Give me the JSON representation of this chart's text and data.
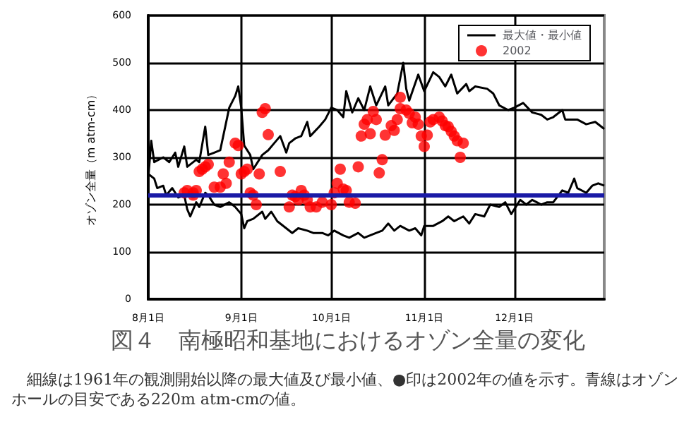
{
  "chart_data": {
    "type": "line",
    "title": "図４　南極昭和基地におけるオゾン全量の変化",
    "ylabel": "オゾン全量（m atm-cm）",
    "annotations": [
      "細線は1961年の観測開始以降の最大値及び最小値、●印は2002年の値を示す。青線はオゾンホールの目安である220m atm-cmの値。"
    ],
    "xlim": [
      "--08-01",
      "--12-31"
    ],
    "xticks": [
      {
        "value": "--08-01",
        "label": "8月1日"
      },
      {
        "value": "--09-01",
        "label": "9月1日"
      },
      {
        "value": "--10-01",
        "label": "10月1日"
      },
      {
        "value": "--11-01",
        "label": "11月1日"
      },
      {
        "value": "--12-01",
        "label": "12月1日"
      }
    ],
    "ylim": [
      0,
      600
    ],
    "yticks": [
      0,
      100,
      200,
      300,
      400,
      500,
      600
    ],
    "grid": true,
    "legend": "top right",
    "marker": "none",
    "line_style": "solid",
    "ref_lines": [
      {
        "axis": "y",
        "value": 220,
        "color": "#1a1aa6"
      }
    ],
    "series": [
      {
        "name": "最大値・最小値",
        "color": "#000000",
        "x": [
          "--08-01",
          "--08-02",
          "--08-03",
          "--08-06",
          "--08-08",
          "--08-10",
          "--08-11",
          "--08-13",
          "--08-14",
          "--08-17",
          "--08-18",
          "--08-20",
          "--08-21",
          "--08-23",
          "--08-25",
          "--08-26",
          "--08-28",
          "--08-30",
          "--08-31",
          "--09-01",
          "--09-02",
          "--09-04",
          "--09-05",
          "--09-08",
          "--09-10",
          "--09-12",
          "--09-14",
          "--09-16",
          "--09-17",
          "--09-19",
          "--09-21",
          "--09-23",
          "--09-24",
          "--09-27",
          "--09-29",
          "--10-01",
          "--10-03",
          "--10-05",
          "--10-06",
          "--10-08",
          "--10-10",
          "--10-12",
          "--10-14",
          "--10-16",
          "--10-19",
          "--10-20",
          "--10-23",
          "--10-25",
          "--10-26",
          "--10-27",
          "--10-30",
          "--11-01",
          "--11-04",
          "--11-06",
          "--11-08",
          "--11-10",
          "--11-12",
          "--11-15",
          "--11-16",
          "--11-18",
          "--11-22",
          "--11-24",
          "--11-26",
          "--11-29",
          "--12-01",
          "--12-04",
          "--12-07",
          "--12-10",
          "--12-12",
          "--12-14",
          "--12-17",
          "--12-18",
          "--12-22",
          "--12-25",
          "--12-28",
          "--12-31"
        ],
        "values": [
          255,
          335,
          290,
          300,
          290,
          310,
          280,
          323,
          280,
          295,
          290,
          365,
          305,
          310,
          315,
          345,
          405,
          430,
          450,
          405,
          325,
          305,
          275,
          305,
          315,
          330,
          345,
          310,
          330,
          340,
          345,
          375,
          345,
          365,
          380,
          405,
          400,
          385,
          440,
          395,
          425,
          400,
          450,
          410,
          450,
          410,
          435,
          500,
          445,
          420,
          475,
          440,
          480,
          470,
          450,
          475,
          435,
          455,
          440,
          450,
          445,
          435,
          410,
          400,
          405,
          415,
          395,
          390,
          380,
          385,
          400,
          380,
          380,
          370,
          375,
          360
        ]
      },
      {
        "color": "#000000",
        "x": [
          "--08-01",
          "--08-03",
          "--08-04",
          "--08-06",
          "--08-07",
          "--08-09",
          "--08-11",
          "--08-13",
          "--08-14",
          "--08-15",
          "--08-17",
          "--08-18",
          "--08-20",
          "--08-21",
          "--08-23",
          "--08-25",
          "--08-28",
          "--08-30",
          "--09-01",
          "--09-02",
          "--09-03",
          "--09-05",
          "--09-08",
          "--09-09",
          "--09-11",
          "--09-13",
          "--09-16",
          "--09-18",
          "--09-20",
          "--09-23",
          "--09-25",
          "--09-28",
          "--09-30",
          "--10-02",
          "--10-05",
          "--10-07",
          "--10-10",
          "--10-12",
          "--10-16",
          "--10-18",
          "--10-20",
          "--10-22",
          "--10-24",
          "--10-27",
          "--10-29",
          "--10-31",
          "--11-01",
          "--11-04",
          "--11-07",
          "--11-09",
          "--11-11",
          "--11-14",
          "--11-16",
          "--11-18",
          "--11-21",
          "--11-23",
          "--11-26",
          "--11-28",
          "--11-30",
          "--12-03",
          "--12-05",
          "--12-07",
          "--12-10",
          "--12-12",
          "--12-14",
          "--12-17",
          "--12-19",
          "--12-21",
          "--12-22",
          "--12-25",
          "--12-27",
          "--12-29",
          "--12-31"
        ],
        "values": [
          265,
          255,
          235,
          240,
          220,
          235,
          215,
          220,
          190,
          175,
          205,
          195,
          225,
          220,
          200,
          195,
          205,
          195,
          180,
          150,
          165,
          170,
          185,
          170,
          185,
          165,
          150,
          140,
          150,
          145,
          140,
          140,
          135,
          145,
          135,
          130,
          140,
          130,
          140,
          145,
          160,
          145,
          155,
          145,
          150,
          135,
          155,
          155,
          165,
          175,
          165,
          175,
          160,
          180,
          175,
          200,
          195,
          205,
          180,
          210,
          200,
          210,
          200,
          205,
          205,
          230,
          225,
          255,
          235,
          225,
          240,
          245,
          240
        ]
      },
      {
        "name": "2002",
        "type": "scatter",
        "color": "#ff0000",
        "marker": "circle",
        "x": [
          "--08-13",
          "--08-14",
          "--08-16",
          "--08-16",
          "--08-17",
          "--08-18",
          "--08-19",
          "--08-20",
          "--08-21",
          "--08-23",
          "--08-25",
          "--08-26",
          "--08-27",
          "--08-28",
          "--08-30",
          "--08-31",
          "--09-01",
          "--09-02",
          "--09-03",
          "--09-04",
          "--09-05",
          "--09-06",
          "--09-07",
          "--09-08",
          "--09-09",
          "--09-10",
          "--09-14",
          "--09-17",
          "--09-18",
          "--09-19",
          "--09-20",
          "--09-21",
          "--09-22",
          "--09-23",
          "--09-24",
          "--09-26",
          "--09-28",
          "--10-01",
          "--10-02",
          "--10-03",
          "--10-04",
          "--10-05",
          "--10-06",
          "--10-07",
          "--10-09",
          "--10-10",
          "--10-11",
          "--10-12",
          "--10-13",
          "--10-14",
          "--10-15",
          "--10-16",
          "--10-17",
          "--10-18",
          "--10-19",
          "--10-21",
          "--10-22",
          "--10-23",
          "--10-24",
          "--10-24",
          "--10-26",
          "--10-27",
          "--10-28",
          "--10-29",
          "--10-30",
          "--10-31",
          "--11-01",
          "--11-02",
          "--11-03",
          "--11-04",
          "--11-06",
          "--11-07",
          "--11-08",
          "--11-09",
          "--11-10",
          "--11-11",
          "--11-12",
          "--11-13",
          "--11-14"
        ],
        "values": [
          225,
          230,
          225,
          220,
          230,
          270,
          275,
          280,
          285,
          237,
          237,
          265,
          245,
          290,
          330,
          325,
          265,
          270,
          275,
          225,
          220,
          200,
          265,
          395,
          403,
          348,
          270,
          195,
          220,
          217,
          210,
          230,
          220,
          210,
          195,
          195,
          205,
          200,
          225,
          245,
          275,
          233,
          230,
          205,
          203,
          280,
          345,
          370,
          380,
          350,
          397,
          380,
          267,
          295,
          347,
          367,
          357,
          380,
          403,
          427,
          400,
          393,
          373,
          385,
          370,
          345,
          323,
          347,
          375,
          380,
          385,
          377,
          367,
          365,
          355,
          345,
          335,
          300,
          330
        ]
      }
    ]
  }
}
